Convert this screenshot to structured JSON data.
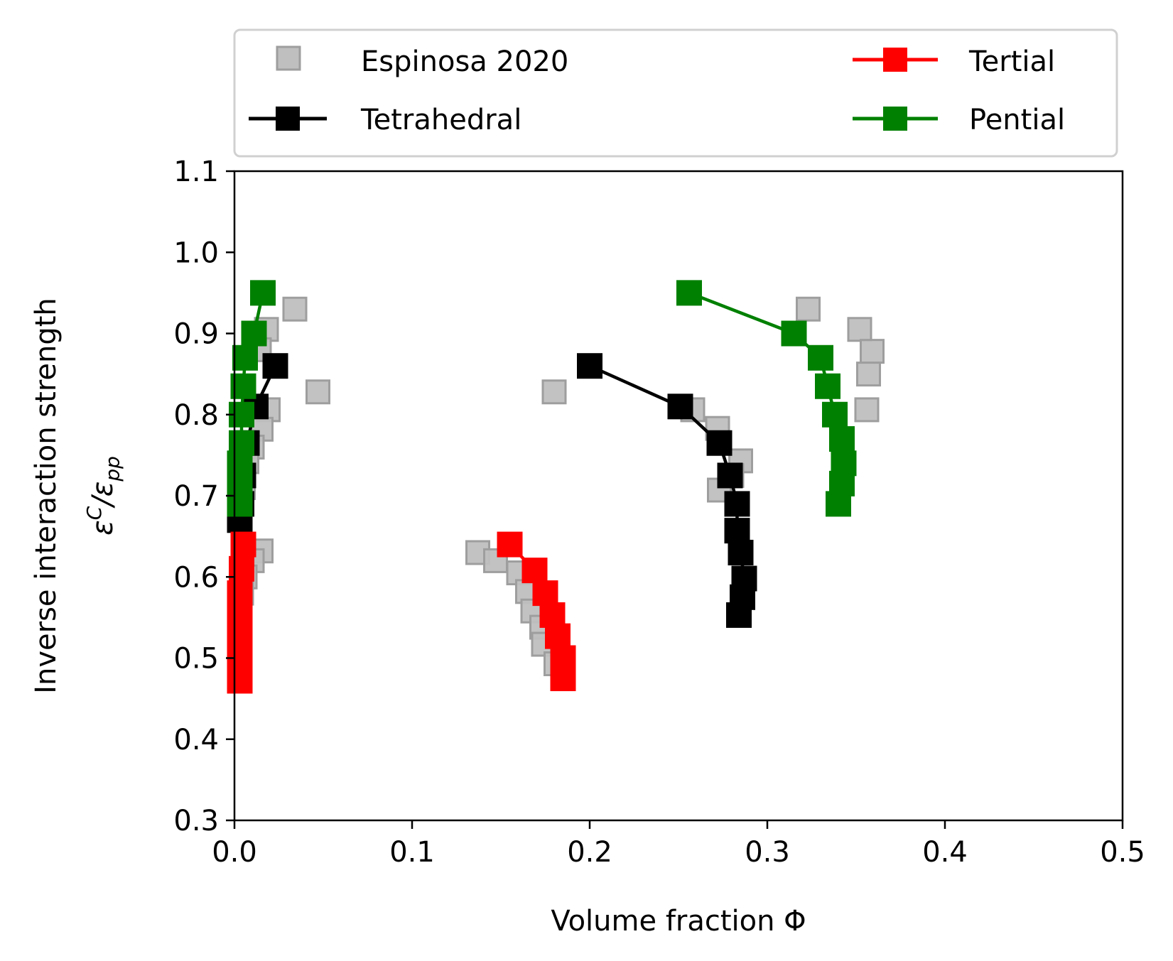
{
  "chart_data": {
    "type": "scatter",
    "xlabel": "Volume fraction Φ",
    "ylabel": {
      "line1": "Inverse interaction strength",
      "symbol": "ε",
      "sup": "C",
      "slash": "/ε",
      "sub": "pp"
    },
    "xlim": [
      0.0,
      0.5
    ],
    "ylim": [
      0.3,
      1.1
    ],
    "x_ticks": [
      "0.0",
      "0.1",
      "0.2",
      "0.3",
      "0.4",
      "0.5"
    ],
    "y_ticks": [
      "0.3",
      "0.4",
      "0.5",
      "0.6",
      "0.7",
      "0.8",
      "0.9",
      "1.0",
      "1.1"
    ],
    "grid": false,
    "legend_position": "top, outside plot, two columns",
    "legend": [
      "Espinosa 2020",
      "Tetrahedral",
      "Tertial",
      "Pential"
    ],
    "series": [
      {
        "name": "Espinosa 2020",
        "color": "#bfbfbf",
        "style": "markers",
        "points": [
          [
            0.034,
            0.93
          ],
          [
            0.047,
            0.828
          ],
          [
            0.018,
            0.905
          ],
          [
            0.014,
            0.88
          ],
          [
            0.019,
            0.806
          ],
          [
            0.015,
            0.782
          ],
          [
            0.01,
            0.76
          ],
          [
            0.007,
            0.742
          ],
          [
            0.005,
            0.71
          ],
          [
            0.015,
            0.632
          ],
          [
            0.01,
            0.62
          ],
          [
            0.006,
            0.6
          ],
          [
            0.004,
            0.58
          ],
          [
            0.137,
            0.63
          ],
          [
            0.147,
            0.62
          ],
          [
            0.16,
            0.605
          ],
          [
            0.165,
            0.582
          ],
          [
            0.168,
            0.558
          ],
          [
            0.173,
            0.538
          ],
          [
            0.174,
            0.517
          ],
          [
            0.181,
            0.493
          ],
          [
            0.18,
            0.828
          ],
          [
            0.258,
            0.806
          ],
          [
            0.272,
            0.783
          ],
          [
            0.285,
            0.743
          ],
          [
            0.28,
            0.725
          ],
          [
            0.273,
            0.707
          ],
          [
            0.323,
            0.93
          ],
          [
            0.352,
            0.905
          ],
          [
            0.359,
            0.878
          ],
          [
            0.357,
            0.85
          ],
          [
            0.356,
            0.806
          ]
        ]
      },
      {
        "name": "Tetrahedral",
        "color": "#000000",
        "style": "line+markers",
        "branches": [
          [
            [
              0.023,
              0.86
            ],
            [
              0.012,
              0.81
            ],
            [
              0.007,
              0.765
            ],
            [
              0.005,
              0.725
            ],
            [
              0.004,
              0.69
            ],
            [
              0.003,
              0.67
            ]
          ],
          [
            [
              0.2,
              0.86
            ],
            [
              0.251,
              0.81
            ],
            [
              0.273,
              0.765
            ],
            [
              0.279,
              0.725
            ],
            [
              0.283,
              0.69
            ],
            [
              0.283,
              0.657
            ],
            [
              0.285,
              0.63
            ],
            [
              0.287,
              0.598
            ],
            [
              0.286,
              0.575
            ],
            [
              0.284,
              0.553
            ]
          ]
        ]
      },
      {
        "name": "Tertial",
        "color": "#ff0000",
        "style": "line+markers",
        "branches": [
          [
            [
              0.005,
              0.64
            ],
            [
              0.004,
              0.61
            ],
            [
              0.003,
              0.58
            ],
            [
              0.003,
              0.55
            ],
            [
              0.003,
              0.52
            ],
            [
              0.003,
              0.495
            ],
            [
              0.003,
              0.472
            ]
          ],
          [
            [
              0.155,
              0.64
            ],
            [
              0.169,
              0.608
            ],
            [
              0.175,
              0.58
            ],
            [
              0.179,
              0.553
            ],
            [
              0.182,
              0.527
            ],
            [
              0.185,
              0.5
            ],
            [
              0.185,
              0.475
            ]
          ]
        ]
      },
      {
        "name": "Pential",
        "color": "#008000",
        "style": "line+markers",
        "branches": [
          [
            [
              0.016,
              0.95
            ],
            [
              0.011,
              0.9
            ],
            [
              0.006,
              0.87
            ],
            [
              0.005,
              0.835
            ],
            [
              0.004,
              0.8
            ],
            [
              0.004,
              0.765
            ],
            [
              0.003,
              0.74
            ],
            [
              0.003,
              0.715
            ],
            [
              0.003,
              0.69
            ]
          ],
          [
            [
              0.256,
              0.95
            ],
            [
              0.315,
              0.9
            ],
            [
              0.33,
              0.87
            ],
            [
              0.334,
              0.835
            ],
            [
              0.338,
              0.8
            ],
            [
              0.342,
              0.77
            ],
            [
              0.343,
              0.74
            ],
            [
              0.342,
              0.715
            ],
            [
              0.34,
              0.69
            ]
          ]
        ]
      }
    ]
  }
}
